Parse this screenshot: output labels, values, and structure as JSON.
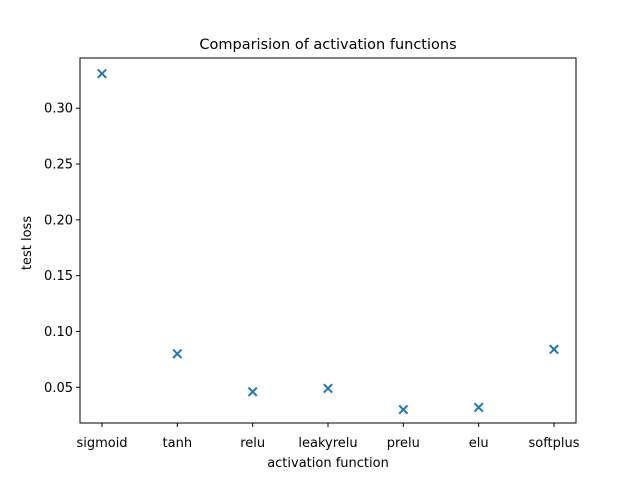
{
  "chart_data": {
    "type": "scatter",
    "title": "Comparision of activation functions",
    "xlabel": "activation function",
    "ylabel": "test loss",
    "categories": [
      "sigmoid",
      "tanh",
      "relu",
      "leakyrelu",
      "prelu",
      "elu",
      "softplus"
    ],
    "values": [
      0.331,
      0.08,
      0.046,
      0.049,
      0.03,
      0.032,
      0.084
    ],
    "ylim": [
      0.018,
      0.345
    ],
    "yticks": [
      0.05,
      0.1,
      0.15,
      0.2,
      0.25,
      0.3
    ],
    "ytick_labels": [
      "0.05",
      "0.10",
      "0.15",
      "0.20",
      "0.25",
      "0.30"
    ],
    "marker": "x",
    "color": "#1f77b4",
    "grid": false,
    "legend": "none"
  }
}
